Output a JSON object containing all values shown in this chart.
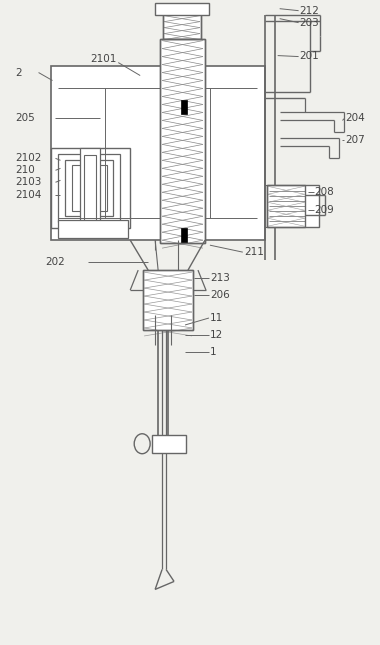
{
  "bg_color": "#f0f0ec",
  "line_color": "#666666",
  "label_color": "#444444",
  "figsize": [
    3.8,
    6.45
  ],
  "dpi": 100
}
